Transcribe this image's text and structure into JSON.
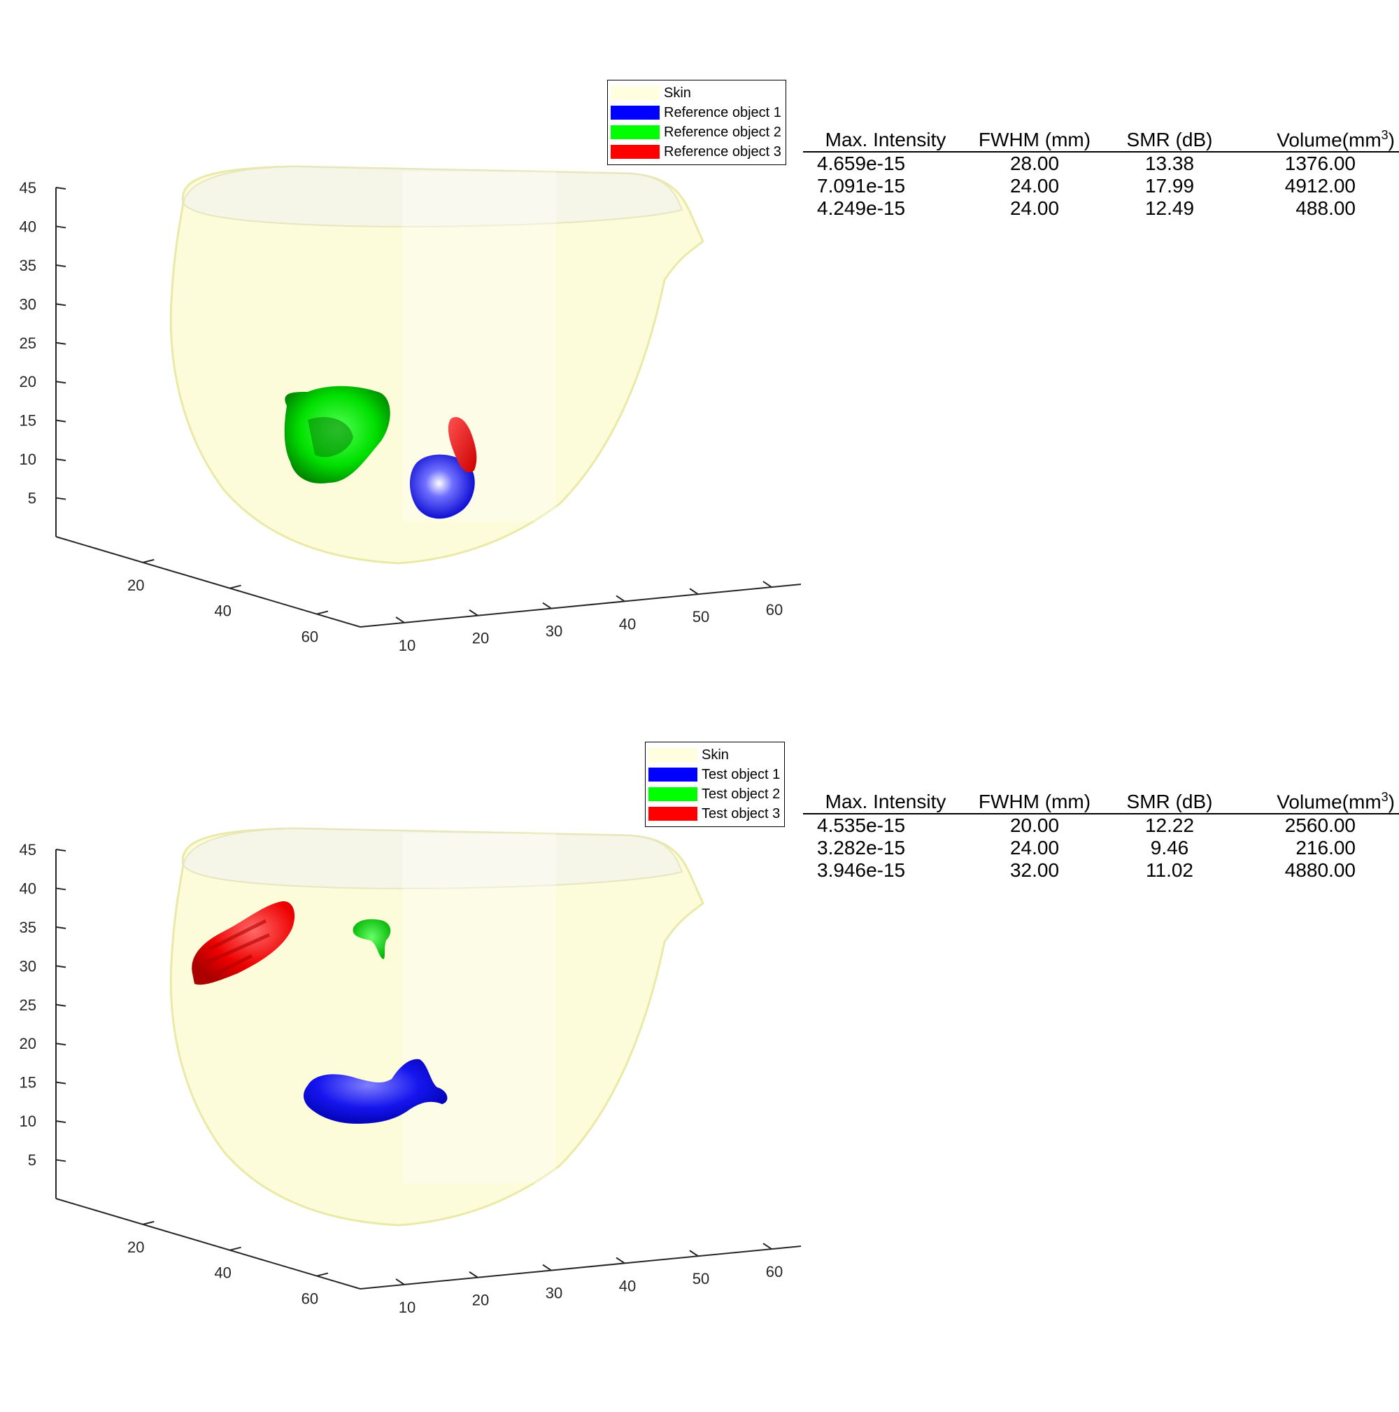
{
  "panels": [
    {
      "legend": [
        {
          "label": "Skin",
          "color": "#ffffe0"
        },
        {
          "label": "Reference object 1",
          "color": "#0000ff"
        },
        {
          "label": "Reference object 2",
          "color": "#00ff00"
        },
        {
          "label": "Reference object 3",
          "color": "#ff0000"
        }
      ],
      "table": {
        "headers": [
          "Max. Intensity",
          "FWHM (mm)",
          "SMR (dB)",
          "Volume(mm",
          "3",
          ")"
        ],
        "rows": [
          [
            "4.659e-15",
            "28.00",
            "13.38",
            "1376.00"
          ],
          [
            "7.091e-15",
            "24.00",
            "17.99",
            "4912.00"
          ],
          [
            "4.249e-15",
            "24.00",
            "12.49",
            "488.00"
          ]
        ]
      }
    },
    {
      "legend": [
        {
          "label": "Skin",
          "color": "#ffffe0"
        },
        {
          "label": "Test object 1",
          "color": "#0000ff"
        },
        {
          "label": "Test object 2",
          "color": "#00ff00"
        },
        {
          "label": "Test object 3",
          "color": "#ff0000"
        }
      ],
      "table": {
        "headers": [
          "Max. Intensity",
          "FWHM (mm)",
          "SMR (dB)",
          "Volume(mm",
          "3",
          ")"
        ],
        "rows": [
          [
            "4.535e-15",
            "20.00",
            "12.22",
            "2560.00"
          ],
          [
            "3.282e-15",
            "24.00",
            "9.46",
            "216.00"
          ],
          [
            "3.946e-15",
            "32.00",
            "11.02",
            "4880.00"
          ]
        ]
      }
    }
  ],
  "chart_data": [
    {
      "type": "3d-surface",
      "z_ticks": [
        5,
        10,
        15,
        20,
        25,
        30,
        35,
        40,
        45
      ],
      "y_ticks": [
        20,
        40,
        60
      ],
      "x_ticks": [
        10,
        20,
        30,
        40,
        50,
        60
      ],
      "zlim": [
        0,
        45
      ],
      "legend_position": "top-right"
    },
    {
      "type": "3d-surface",
      "z_ticks": [
        5,
        10,
        15,
        20,
        25,
        30,
        35,
        40,
        45
      ],
      "y_ticks": [
        20,
        40,
        60
      ],
      "x_ticks": [
        10,
        20,
        30,
        40,
        50,
        60
      ],
      "zlim": [
        0,
        45
      ],
      "legend_position": "top-right"
    }
  ]
}
